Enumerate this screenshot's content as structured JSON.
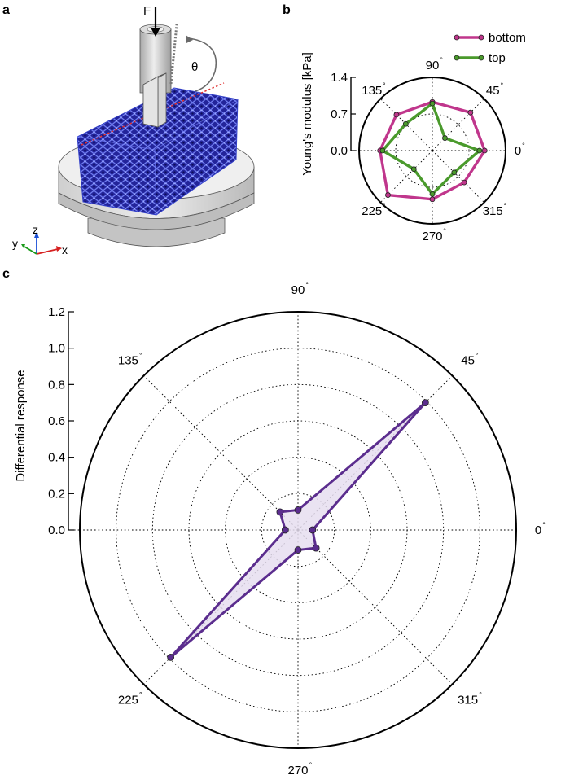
{
  "panels": {
    "a": {
      "label": "a",
      "force_label": "F",
      "angle_label": "θ",
      "axis_z": "z",
      "axis_y": "y",
      "axis_x": "x"
    },
    "b": {
      "label": "b"
    },
    "c": {
      "label": "c"
    }
  },
  "chart_data": [
    {
      "panel": "b",
      "type": "radar",
      "ylabel": "Young's modulus [kPa]",
      "rlim": [
        0,
        1.4
      ],
      "rticks": [
        "0.0",
        "0.7",
        "1.4"
      ],
      "angles": [
        0,
        45,
        90,
        135,
        180,
        225,
        270,
        315
      ],
      "angle_labels": [
        "0",
        "45",
        "90",
        "135",
        "",
        "225",
        "270",
        "315"
      ],
      "degree_mark": "°",
      "grid": true,
      "legend_position": "top-right",
      "series": [
        {
          "name": "bottom",
          "color": "#c0368c",
          "values": [
            1.0,
            1.03,
            0.93,
            0.97,
            1.0,
            1.2,
            0.93,
            0.86
          ]
        },
        {
          "name": "top",
          "color": "#4a9a2c",
          "values": [
            0.9,
            0.34,
            0.9,
            0.72,
            0.95,
            0.5,
            0.83,
            0.59
          ]
        }
      ]
    },
    {
      "panel": "c",
      "type": "radar",
      "ylabel": "Differential response",
      "rlim": [
        0,
        1.2
      ],
      "rticks": [
        "0.0",
        "0.2",
        "0.4",
        "0.6",
        "0.8",
        "1.0",
        "1.2"
      ],
      "angles": [
        0,
        45,
        90,
        135,
        180,
        225,
        270,
        315
      ],
      "angle_labels": [
        "0",
        "45",
        "90",
        "135",
        "",
        "225",
        "270",
        "315"
      ],
      "degree_mark": "°",
      "grid": true,
      "series": [
        {
          "name": "",
          "color": "#5b2d8e",
          "fill": "#e6def0",
          "values": [
            0.08,
            0.99,
            0.11,
            0.14,
            0.07,
            0.99,
            0.11,
            0.14
          ]
        }
      ]
    }
  ]
}
